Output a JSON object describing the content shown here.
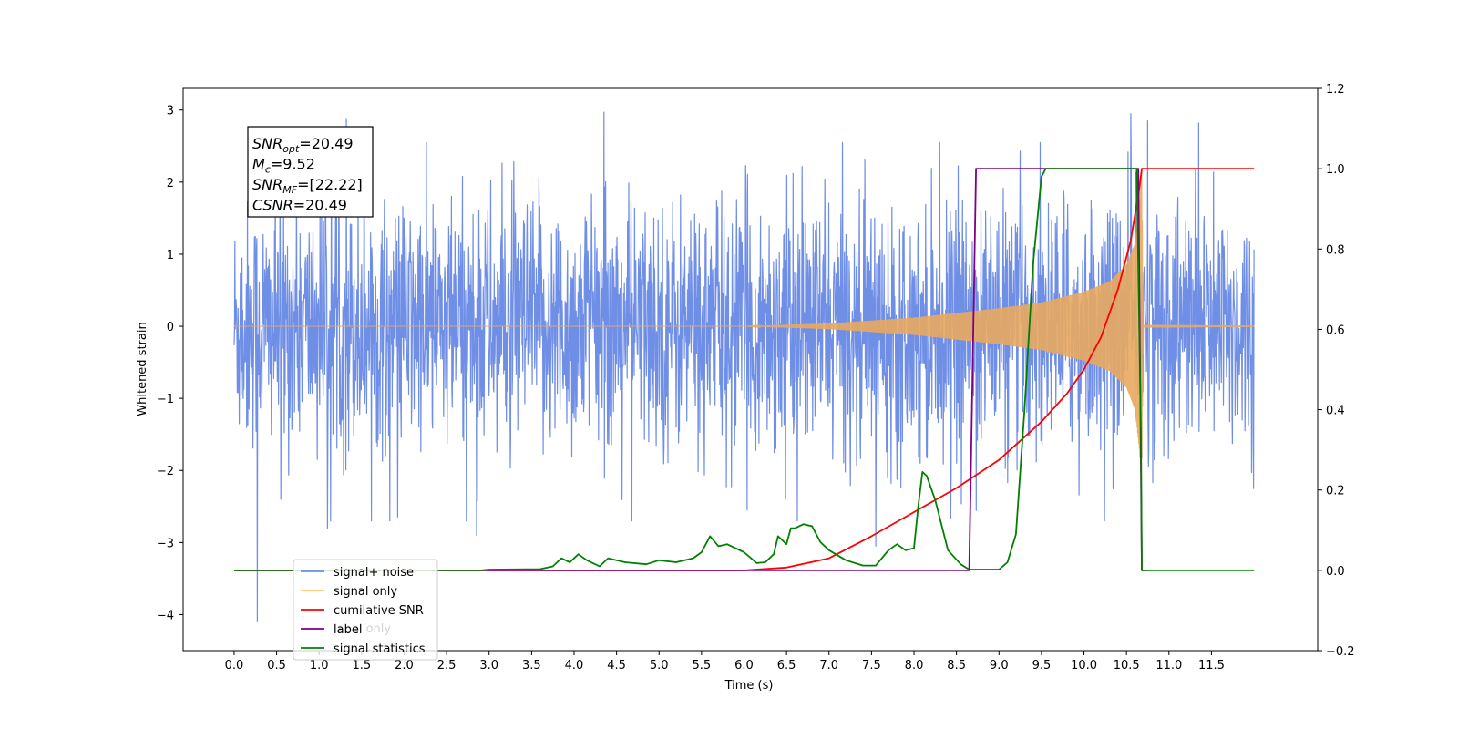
{
  "chart_data": {
    "type": "line",
    "xlabel": "Time (s)",
    "ylabel": "Whitened strain",
    "xlim": [
      -0.6,
      12.75
    ],
    "ylim": [
      -4.5,
      3.3
    ],
    "y2lim": [
      -0.2,
      1.2
    ],
    "x_ticks": [
      0.0,
      0.5,
      1.0,
      1.5,
      2.0,
      2.5,
      3.0,
      3.5,
      4.0,
      4.5,
      5.0,
      5.5,
      6.0,
      6.5,
      7.0,
      7.5,
      8.0,
      8.5,
      9.0,
      9.5,
      10.0,
      10.5,
      11.0,
      11.5
    ],
    "x_tick_labels": [
      "0.0",
      "0.5",
      "1.0",
      "1.5",
      "2.0",
      "2.5",
      "3.0",
      "3.5",
      "4.0",
      "4.5",
      "5.0",
      "5.5",
      "6.0",
      "6.5",
      "7.0",
      "7.5",
      "8.0",
      "8.5",
      "9.0",
      "9.5",
      "10.0",
      "10.5",
      "11.0",
      "11.5"
    ],
    "y_ticks": [
      3,
      2,
      1,
      0,
      -1,
      -2,
      -3,
      -4
    ],
    "y_tick_labels": [
      "3",
      "2",
      "1",
      "0",
      "−1",
      "−2",
      "−3",
      "−4"
    ],
    "y2_ticks": [
      1.2,
      1.0,
      0.8,
      0.6,
      0.4,
      0.2,
      0.0,
      -0.2
    ],
    "y2_tick_labels": [
      "1.2",
      "1.0",
      "0.8",
      "0.6",
      "0.4",
      "0.2",
      "0.0",
      "−0.2"
    ],
    "grid": false,
    "legend_placement": "lower-left",
    "series": [
      {
        "name": "signal+ noise",
        "axis": "left",
        "color": "#6f8ee6",
        "kind": "noise",
        "x_range": [
          0.0,
          12.0
        ],
        "sigma": 0.85,
        "extreme_spikes": [
          [
            0.27,
            -4.1
          ],
          [
            1.32,
            2.87
          ],
          [
            4.35,
            2.97
          ],
          [
            10.55,
            2.95
          ],
          [
            10.75,
            2.85
          ],
          [
            11.35,
            2.82
          ],
          [
            7.55,
            -3.05
          ],
          [
            2.85,
            -2.9
          ],
          [
            0.55,
            -2.4
          ],
          [
            1.1,
            -2.8
          ]
        ]
      },
      {
        "name": "signal only",
        "axis": "left",
        "color": "#e8a95f",
        "kind": "chirp",
        "envelope": [
          [
            0.0,
            0.0
          ],
          [
            6.0,
            0.0
          ],
          [
            7.0,
            0.04
          ],
          [
            8.0,
            0.12
          ],
          [
            9.0,
            0.25
          ],
          [
            9.5,
            0.33
          ],
          [
            10.0,
            0.48
          ],
          [
            10.3,
            0.62
          ],
          [
            10.5,
            0.85
          ],
          [
            10.6,
            1.15
          ],
          [
            10.65,
            1.7
          ],
          [
            10.68,
            2.2
          ],
          [
            10.7,
            0.02
          ],
          [
            12.0,
            0.01
          ]
        ]
      },
      {
        "name": "cumilative SNR",
        "axis": "right",
        "color": "#ff0000",
        "kind": "line",
        "points": [
          [
            0.0,
            0.0
          ],
          [
            6.0,
            0.0
          ],
          [
            6.5,
            0.007
          ],
          [
            7.0,
            0.03
          ],
          [
            7.5,
            0.085
          ],
          [
            8.0,
            0.145
          ],
          [
            8.5,
            0.205
          ],
          [
            9.0,
            0.275
          ],
          [
            9.5,
            0.37
          ],
          [
            9.8,
            0.44
          ],
          [
            10.0,
            0.5
          ],
          [
            10.2,
            0.58
          ],
          [
            10.4,
            0.7
          ],
          [
            10.55,
            0.82
          ],
          [
            10.65,
            0.95
          ],
          [
            10.68,
            1.0
          ],
          [
            12.0,
            1.0
          ]
        ]
      },
      {
        "name": "label",
        "axis": "right",
        "color": "#800080",
        "kind": "line",
        "points": [
          [
            0.0,
            0.0
          ],
          [
            8.65,
            0.0
          ],
          [
            8.73,
            1.0
          ],
          [
            10.64,
            1.0
          ],
          [
            10.68,
            0.0
          ],
          [
            10.75,
            0.0
          ]
        ]
      },
      {
        "name": "signal statistics",
        "axis": "right",
        "color": "#008000",
        "kind": "line",
        "points": [
          [
            0.0,
            0.0
          ],
          [
            2.9,
            0.0
          ],
          [
            3.0,
            0.002
          ],
          [
            3.6,
            0.003
          ],
          [
            3.75,
            0.01
          ],
          [
            3.85,
            0.03
          ],
          [
            3.95,
            0.02
          ],
          [
            4.05,
            0.04
          ],
          [
            4.15,
            0.025
          ],
          [
            4.3,
            0.01
          ],
          [
            4.4,
            0.03
          ],
          [
            4.6,
            0.02
          ],
          [
            4.85,
            0.015
          ],
          [
            5.0,
            0.025
          ],
          [
            5.2,
            0.02
          ],
          [
            5.4,
            0.03
          ],
          [
            5.5,
            0.045
          ],
          [
            5.6,
            0.085
          ],
          [
            5.7,
            0.06
          ],
          [
            5.8,
            0.065
          ],
          [
            6.0,
            0.045
          ],
          [
            6.15,
            0.018
          ],
          [
            6.25,
            0.02
          ],
          [
            6.35,
            0.04
          ],
          [
            6.4,
            0.085
          ],
          [
            6.5,
            0.065
          ],
          [
            6.55,
            0.105
          ],
          [
            6.6,
            0.105
          ],
          [
            6.7,
            0.115
          ],
          [
            6.8,
            0.11
          ],
          [
            6.9,
            0.07
          ],
          [
            7.0,
            0.05
          ],
          [
            7.2,
            0.025
          ],
          [
            7.4,
            0.012
          ],
          [
            7.55,
            0.012
          ],
          [
            7.7,
            0.05
          ],
          [
            7.8,
            0.065
          ],
          [
            7.9,
            0.05
          ],
          [
            8.0,
            0.055
          ],
          [
            8.05,
            0.16
          ],
          [
            8.1,
            0.245
          ],
          [
            8.15,
            0.235
          ],
          [
            8.25,
            0.175
          ],
          [
            8.4,
            0.05
          ],
          [
            8.55,
            0.015
          ],
          [
            8.65,
            0.002
          ],
          [
            9.0,
            0.002
          ],
          [
            9.1,
            0.02
          ],
          [
            9.2,
            0.09
          ],
          [
            9.3,
            0.4
          ],
          [
            9.4,
            0.76
          ],
          [
            9.5,
            0.98
          ],
          [
            9.55,
            1.0
          ],
          [
            10.62,
            1.0
          ],
          [
            10.67,
            0.35
          ],
          [
            10.68,
            0.0
          ],
          [
            12.0,
            0.0
          ]
        ]
      }
    ],
    "legend": [
      {
        "label": "signal+ noise",
        "color": "#6f8ee6"
      },
      {
        "label": "signal only",
        "color": "#ffc370"
      },
      {
        "label": "cumilative SNR",
        "color": "#ff0000"
      },
      {
        "label": "label",
        "color": "#800080"
      },
      {
        "label": "signal statistics",
        "color": "#008000"
      }
    ],
    "annotation_lines": [
      {
        "base": "SNR",
        "sub": "opt",
        "value": "=20.49"
      },
      {
        "base": "M",
        "sub": "c",
        "value": "=9.52"
      },
      {
        "base": "SNR",
        "sub": "MF",
        "value": "=[22.22]"
      },
      {
        "base": "CSNR",
        "sub": "",
        "value": "=20.49"
      }
    ],
    "ghost_legend_text": "label only"
  }
}
